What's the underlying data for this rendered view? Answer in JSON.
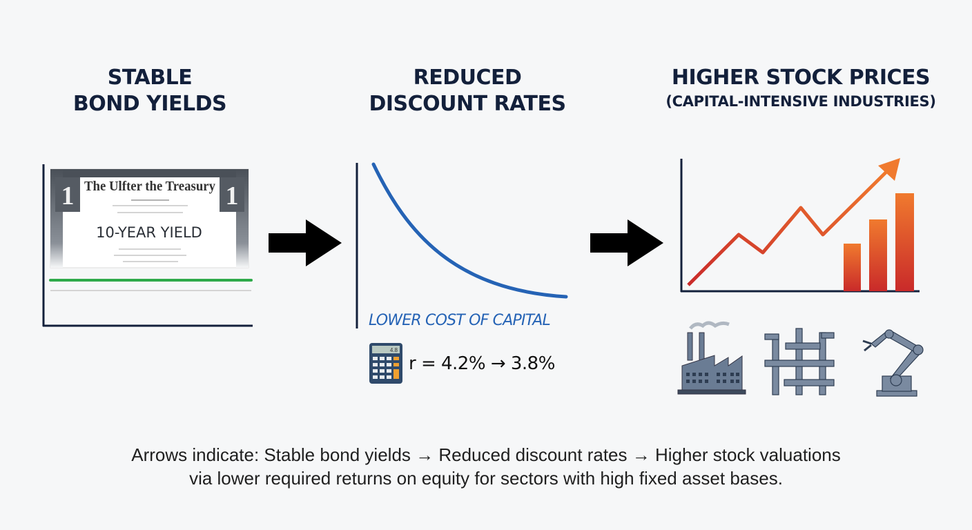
{
  "steps": [
    {
      "title_line1": "STABLE",
      "title_line2": "BOND YIELDS",
      "certificate_header": "The Ulfter the Treasury",
      "certificate_label": "10-YEAR YIELD",
      "denomination": "1"
    },
    {
      "title_line1": "REDUCED",
      "title_line2": "DISCOUNT RATES",
      "curve_label": "LOWER COST OF CAPITAL",
      "calculator_display": "4.8",
      "formula": "r = 4.2% → 3.8%"
    },
    {
      "title_line1": "HIGHER STOCK PRICES",
      "title_line2": "(CAPITAL-INTENSIVE INDUSTRIES)",
      "icons": [
        "factory-icon",
        "pipes-icon",
        "robot-arm-icon"
      ]
    }
  ],
  "caption": {
    "line1": "Arrows indicate: Stable bond yields → Reduced discount rates → Higher stock valuations",
    "line2": "via lower required returns on equity for sectors with high fixed asset bases."
  },
  "colors": {
    "title": "#13203b",
    "yield_line": "#2eaa4a",
    "curve": "#2563b5",
    "trend_line": "#d63a2a",
    "bars_top": "#f07a2e",
    "bars_bottom": "#c92a2a",
    "icons": "#5f7189"
  }
}
